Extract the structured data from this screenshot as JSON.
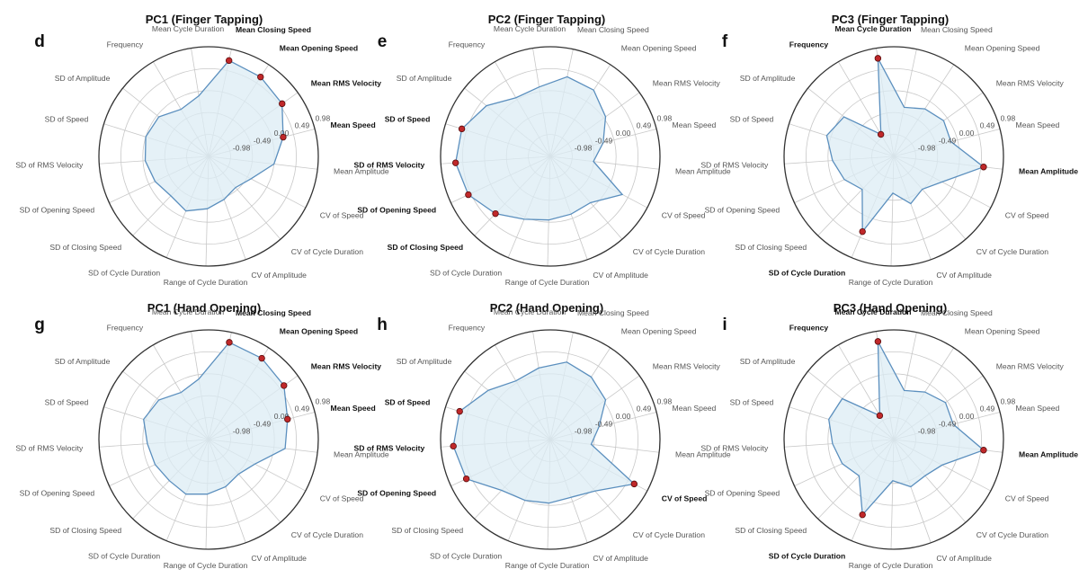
{
  "chart_data": {
    "type": "radar",
    "axes": [
      "Mean Closing Speed",
      "Mean Opening Speed",
      "Mean RMS Velocity",
      "Mean Speed",
      "Mean Amplitude",
      "CV of Speed",
      "CV of Cycle Duration",
      "CV of Amplitude",
      "Range of Cycle Duration",
      "SD of Cycle Duration",
      "SD of Closing Speed",
      "SD of Opening Speed",
      "SD of RMS Velocity",
      "SD of Speed",
      "SD of Amplitude",
      "Frequency",
      "Mean Cycle Duration"
    ],
    "rlim": [
      -1.47,
      0.98
    ],
    "ring_labels": [
      "0.98",
      "0.49",
      "0.00",
      "-0.49",
      "-0.98"
    ],
    "grid": true,
    "panels": [
      {
        "letter": "d",
        "title": "PC1 (Finger Tapping)",
        "values": [
          0.72,
          0.65,
          0.55,
          0.25,
          0.0,
          -0.4,
          -0.55,
          -0.45,
          -0.3,
          -0.15,
          -0.25,
          -0.15,
          -0.05,
          0.0,
          -0.05,
          -0.25,
          -0.1
        ],
        "highlight": [
          "Mean Closing Speed",
          "Mean Opening Speed",
          "Mean RMS Velocity",
          "Mean Speed"
        ]
      },
      {
        "letter": "e",
        "title": "PC2 (Finger Tapping)",
        "values": [
          0.35,
          0.3,
          0.05,
          -0.25,
          -0.5,
          0.35,
          -0.1,
          -0.1,
          -0.05,
          0.05,
          0.3,
          0.55,
          0.65,
          0.6,
          0.35,
          0.05,
          0.1
        ],
        "highlight": [
          "SD of Speed",
          "SD of RMS Velocity",
          "SD of Opening Speed",
          "SD of Closing Speed"
        ]
      },
      {
        "letter": "f",
        "title": "PC3 (Finger Tapping)",
        "values": [
          -0.35,
          -0.2,
          -0.1,
          -0.15,
          0.55,
          -0.25,
          -0.5,
          -0.35,
          -0.65,
          0.35,
          -0.45,
          -0.25,
          -0.1,
          0.1,
          -0.05,
          -0.9,
          0.75
        ],
        "highlight": [
          "Mean Cycle Duration",
          "Frequency",
          "SD of Cycle Duration",
          "Mean Amplitude"
        ]
      },
      {
        "letter": "g",
        "title": "PC1 (Hand Opening)",
        "values": [
          0.75,
          0.7,
          0.6,
          0.35,
          0.25,
          -0.3,
          -0.45,
          -0.35,
          -0.25,
          -0.15,
          -0.2,
          -0.15,
          -0.1,
          0.05,
          -0.05,
          -0.25,
          -0.1
        ],
        "highlight": [
          "Mean Closing Speed",
          "Mean Opening Speed",
          "Mean RMS Velocity",
          "Mean Speed"
        ]
      },
      {
        "letter": "h",
        "title": "PC2 (Hand Opening)",
        "values": [
          0.3,
          0.2,
          0.05,
          -0.35,
          -0.55,
          0.65,
          0.05,
          -0.1,
          -0.05,
          0.0,
          0.1,
          0.6,
          0.7,
          0.65,
          0.3,
          0.05,
          0.15
        ],
        "highlight": [
          "SD of Speed",
          "SD of RMS Velocity",
          "SD of Opening Speed",
          "CV of Speed"
        ]
      },
      {
        "letter": "i",
        "title": "PC3 (Hand Opening)",
        "values": [
          -0.35,
          -0.2,
          -0.05,
          -0.1,
          0.55,
          -0.25,
          -0.4,
          -0.35,
          -0.55,
          0.35,
          -0.35,
          -0.2,
          -0.1,
          0.05,
          0.0,
          -0.85,
          0.75
        ],
        "highlight": [
          "Mean Cycle Duration",
          "Frequency",
          "SD of Cycle Duration",
          "Mean Amplitude"
        ]
      }
    ]
  },
  "colors": {
    "line": "#5b8fbe",
    "fill": "#dcecf4",
    "marker": "#c0282a",
    "grid": "#c8c8c8",
    "outer_ring": "#333333"
  }
}
